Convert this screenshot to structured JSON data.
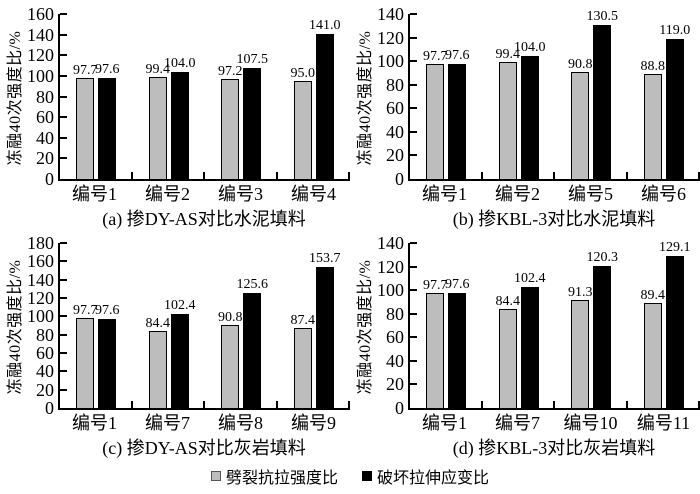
{
  "figure": {
    "legend": {
      "items": [
        {
          "label": "劈裂抗拉强度比",
          "color": "#bdbdbd",
          "outlined": true
        },
        {
          "label": "破坏拉伸应变比",
          "color": "#000000",
          "outlined": false
        }
      ]
    }
  },
  "chart_data": [
    {
      "type": "bar",
      "panel": "a",
      "title": "(a) 掺DY-AS对比水泥填料",
      "ylabel": "冻融40次强度比/%",
      "ylim": [
        0,
        160
      ],
      "yticks": [
        0,
        20,
        40,
        60,
        80,
        100,
        120,
        140,
        160
      ],
      "grid": false,
      "categories": [
        "编号1",
        "编号2",
        "编号3",
        "编号4"
      ],
      "series": [
        {
          "name": "劈裂抗拉强度比",
          "color": "#bdbdbd",
          "values": [
            97.7,
            99.4,
            97.2,
            95.0
          ],
          "labels": [
            "97.7",
            "99.4",
            "97.2",
            "95.0"
          ]
        },
        {
          "name": "破坏拉伸应变比",
          "color": "#000000",
          "values": [
            97.6,
            104.0,
            107.5,
            141.0
          ],
          "labels": [
            "97.6",
            "104.0",
            "107.5",
            "141.0"
          ]
        }
      ]
    },
    {
      "type": "bar",
      "panel": "b",
      "title": "(b) 掺KBL-3对比水泥填料",
      "ylabel": "冻融40次强度比/%",
      "ylim": [
        0,
        140
      ],
      "yticks": [
        0,
        20,
        40,
        60,
        80,
        100,
        120,
        140
      ],
      "grid": false,
      "categories": [
        "编号1",
        "编号2",
        "编号5",
        "编号6"
      ],
      "series": [
        {
          "name": "劈裂抗拉强度比",
          "color": "#bdbdbd",
          "values": [
            97.7,
            99.4,
            90.8,
            88.8
          ],
          "labels": [
            "97.7",
            "99.4",
            "90.8",
            "88.8"
          ]
        },
        {
          "name": "破坏拉伸应变比",
          "color": "#000000",
          "values": [
            97.6,
            104.0,
            130.5,
            119.0
          ],
          "labels": [
            "97.6",
            "104.0",
            "130.5",
            "119.0"
          ]
        }
      ]
    },
    {
      "type": "bar",
      "panel": "c",
      "title": "(c) 掺DY-AS对比灰岩填料",
      "ylabel": "冻融40次强度比/%",
      "ylim": [
        0,
        180
      ],
      "yticks": [
        0,
        20,
        40,
        60,
        80,
        100,
        120,
        140,
        160,
        180
      ],
      "grid": false,
      "categories": [
        "编号1",
        "编号7",
        "编号8",
        "编号9"
      ],
      "series": [
        {
          "name": "劈裂抗拉强度比",
          "color": "#bdbdbd",
          "values": [
            97.7,
            84.4,
            90.8,
            87.4
          ],
          "labels": [
            "97.7",
            "84.4",
            "90.8",
            "87.4"
          ]
        },
        {
          "name": "破坏拉伸应变比",
          "color": "#000000",
          "values": [
            97.6,
            102.4,
            125.6,
            153.7
          ],
          "labels": [
            "97.6",
            "102.4",
            "125.6",
            "153.7"
          ]
        }
      ]
    },
    {
      "type": "bar",
      "panel": "d",
      "title": "(d) 掺KBL-3对比灰岩填料",
      "ylabel": "冻融40次强度比/%",
      "ylim": [
        0,
        140
      ],
      "yticks": [
        0,
        20,
        40,
        60,
        80,
        100,
        120,
        140
      ],
      "grid": false,
      "categories": [
        "编号1",
        "编号7",
        "编号10",
        "编号11"
      ],
      "series": [
        {
          "name": "劈裂抗拉强度比",
          "color": "#bdbdbd",
          "values": [
            97.7,
            84.4,
            91.3,
            89.4
          ],
          "labels": [
            "97.7",
            "84.4",
            "91.3",
            "89.4"
          ]
        },
        {
          "name": "破坏拉伸应变比",
          "color": "#000000",
          "values": [
            97.6,
            102.4,
            120.3,
            129.1
          ],
          "labels": [
            "97.6",
            "102.4",
            "120.3",
            "129.1"
          ]
        }
      ]
    }
  ]
}
